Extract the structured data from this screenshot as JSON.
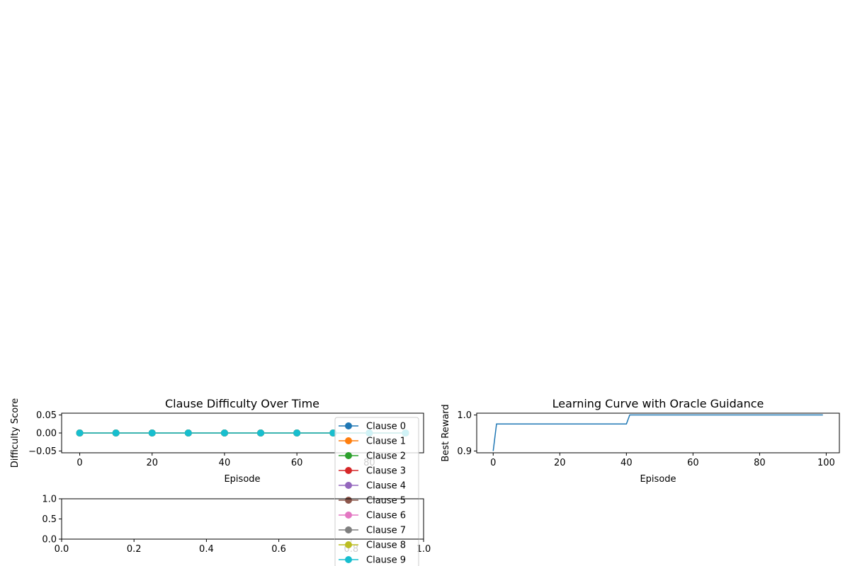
{
  "chart_data": [
    {
      "type": "line",
      "title": "Clause Difficulty Over Time",
      "xlabel": "Episode",
      "ylabel": "Difficulty Score",
      "xlim": [
        -5,
        95
      ],
      "ylim": [
        -0.055,
        0.055
      ],
      "xticks": [
        "0",
        "20",
        "40",
        "60",
        "80"
      ],
      "yticks": [
        "0.05",
        "0.00",
        "−0.05"
      ],
      "x": [
        0,
        10,
        20,
        30,
        40,
        50,
        60,
        70,
        80,
        90
      ],
      "series": [
        {
          "name": "Clause 0",
          "color": "#1f77b4",
          "values": [
            0,
            0,
            0,
            0,
            0,
            0,
            0,
            0,
            0,
            0
          ]
        },
        {
          "name": "Clause 1",
          "color": "#ff7f0e",
          "values": [
            0,
            0,
            0,
            0,
            0,
            0,
            0,
            0,
            0,
            0
          ]
        },
        {
          "name": "Clause 2",
          "color": "#2ca02c",
          "values": [
            0,
            0,
            0,
            0,
            0,
            0,
            0,
            0,
            0,
            0
          ]
        },
        {
          "name": "Clause 3",
          "color": "#d62728",
          "values": [
            0,
            0,
            0,
            0,
            0,
            0,
            0,
            0,
            0,
            0
          ]
        },
        {
          "name": "Clause 4",
          "color": "#9467bd",
          "values": [
            0,
            0,
            0,
            0,
            0,
            0,
            0,
            0,
            0,
            0
          ]
        },
        {
          "name": "Clause 5",
          "color": "#8c564b",
          "values": [
            0,
            0,
            0,
            0,
            0,
            0,
            0,
            0,
            0,
            0
          ]
        },
        {
          "name": "Clause 6",
          "color": "#e377c2",
          "values": [
            0,
            0,
            0,
            0,
            0,
            0,
            0,
            0,
            0,
            0
          ]
        },
        {
          "name": "Clause 7",
          "color": "#7f7f7f",
          "values": [
            0,
            0,
            0,
            0,
            0,
            0,
            0,
            0,
            0,
            0
          ]
        },
        {
          "name": "Clause 8",
          "color": "#bcbd22",
          "values": [
            0,
            0,
            0,
            0,
            0,
            0,
            0,
            0,
            0,
            0
          ]
        },
        {
          "name": "Clause 9",
          "color": "#17becf",
          "values": [
            0,
            0,
            0,
            0,
            0,
            0,
            0,
            0,
            0,
            0
          ]
        }
      ],
      "legend": "right, overflowing below axes",
      "grid": false
    },
    {
      "type": "line",
      "title": "",
      "xlabel": "",
      "ylabel": "",
      "xlim": [
        0,
        1
      ],
      "ylim": [
        0,
        1
      ],
      "xticks": [
        "0.0",
        "0.2",
        "0.4",
        "0.6",
        "0.8",
        "1.0"
      ],
      "yticks": [
        "1.0",
        "0.5",
        "0.0"
      ],
      "series": [],
      "grid": false
    },
    {
      "type": "line",
      "title": "Learning Curve with Oracle Guidance",
      "xlabel": "Episode",
      "ylabel": "Best Reward",
      "xlim": [
        -4.95,
        103.95
      ],
      "ylim": [
        0.895,
        1.005
      ],
      "xticks": [
        "0",
        "20",
        "40",
        "60",
        "80",
        "100"
      ],
      "yticks": [
        "1.0",
        "0.9"
      ],
      "series": [
        {
          "name": "",
          "color": "#1f77b4",
          "step_points": [
            [
              0,
              0.9
            ],
            [
              1,
              0.975
            ],
            [
              40,
              0.975
            ],
            [
              41,
              1.0
            ],
            [
              99,
              1.0
            ]
          ]
        }
      ],
      "grid": false
    }
  ]
}
